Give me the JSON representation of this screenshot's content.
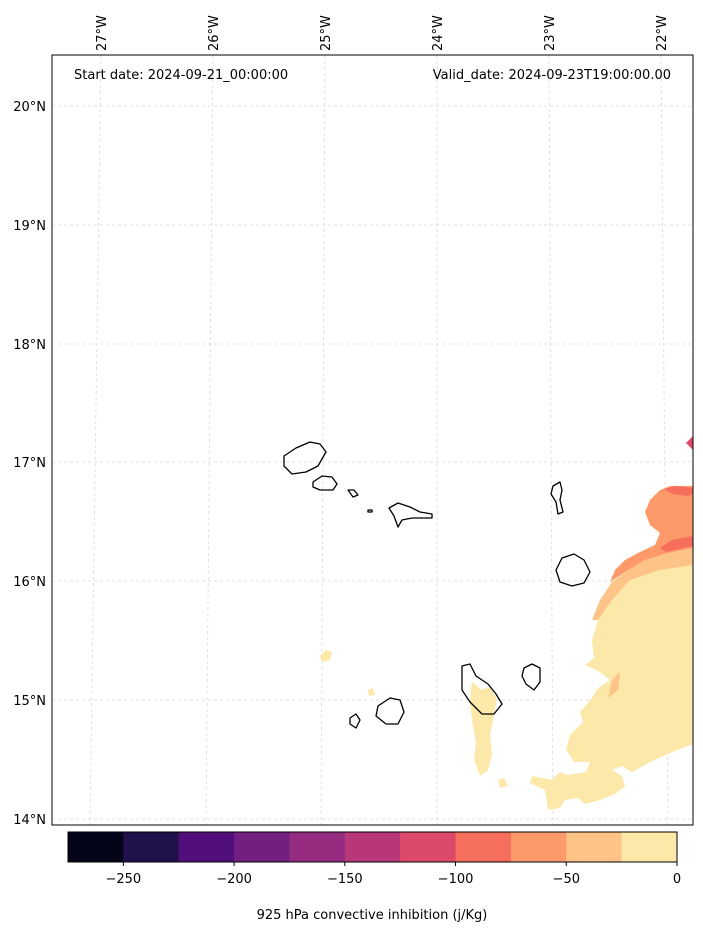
{
  "header": {
    "start_date": "Start date: 2024-09-21_00:00:00",
    "valid_date": "Valid_date: 2024-09-23T19:00:00.00"
  },
  "map": {
    "lon_labels": [
      "27°W",
      "26°W",
      "25°W",
      "24°W",
      "23°W",
      "22°W"
    ],
    "lat_labels": [
      "20°N",
      "19°N",
      "18°N",
      "17°N",
      "16°N",
      "15°N",
      "14°N"
    ],
    "gridlines": true
  },
  "colorbar": {
    "label": "925 hPa convective inhibition (j/Kg)",
    "ticks": [
      "−250",
      "−200",
      "−150",
      "−100",
      "−50",
      "0"
    ],
    "levels": [
      -275,
      -250,
      -225,
      -200,
      -175,
      -150,
      -125,
      -100,
      -75,
      -50,
      -25,
      0
    ],
    "colors": [
      "#05051a",
      "#20114b",
      "#520f7c",
      "#721f81",
      "#952c80",
      "#b73779",
      "#dd4a69",
      "#f66e5c",
      "#fe9a6a",
      "#fec487",
      "#fce8a8"
    ]
  }
}
